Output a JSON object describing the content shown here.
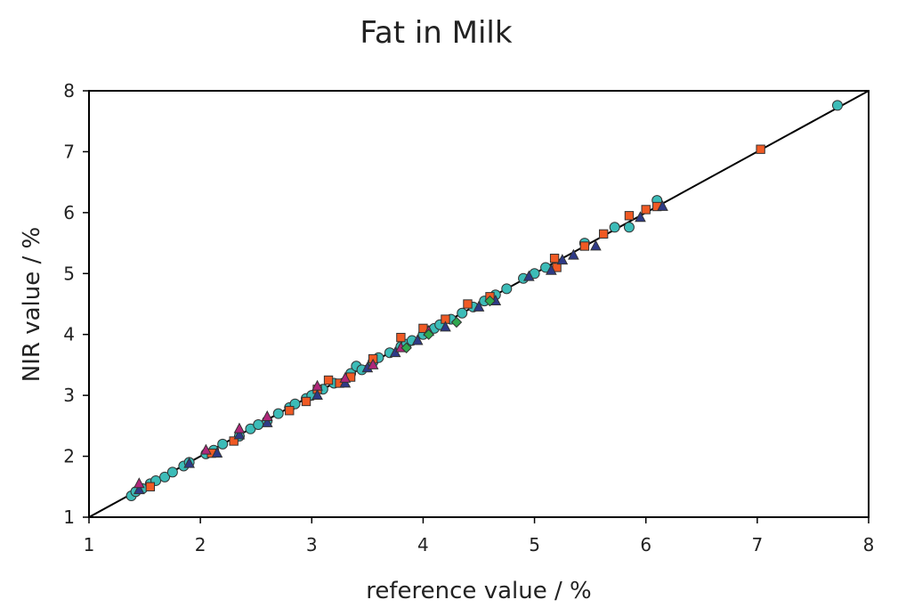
{
  "chart_data": {
    "type": "scatter",
    "title": "Fat in Milk",
    "xlabel": "reference   value  / %",
    "ylabel": "NIR  value  / %",
    "xlim": [
      1,
      8
    ],
    "ylim": [
      1,
      8
    ],
    "x_ticks": [
      "1",
      "2",
      "3",
      "4",
      "5",
      "6",
      "7",
      "8"
    ],
    "y_ticks": [
      "1",
      "2",
      "3",
      "4",
      "5",
      "6",
      "7",
      "8"
    ],
    "grid": false,
    "legend": "none",
    "reference_line": {
      "x": [
        1,
        8
      ],
      "y": [
        1,
        8
      ]
    },
    "series": [
      {
        "marker": "circle",
        "color": "#3cbcb8",
        "points": [
          [
            1.38,
            1.35
          ],
          [
            1.42,
            1.42
          ],
          [
            1.48,
            1.47
          ],
          [
            1.55,
            1.55
          ],
          [
            1.6,
            1.6
          ],
          [
            1.68,
            1.66
          ],
          [
            1.75,
            1.74
          ],
          [
            1.85,
            1.84
          ],
          [
            1.9,
            1.9
          ],
          [
            2.05,
            2.04
          ],
          [
            2.12,
            2.1
          ],
          [
            2.2,
            2.2
          ],
          [
            2.35,
            2.33
          ],
          [
            2.45,
            2.45
          ],
          [
            2.52,
            2.52
          ],
          [
            2.6,
            2.58
          ],
          [
            2.7,
            2.7
          ],
          [
            2.8,
            2.8
          ],
          [
            2.85,
            2.86
          ],
          [
            2.95,
            2.95
          ],
          [
            3.0,
            3.0
          ],
          [
            3.1,
            3.1
          ],
          [
            3.2,
            3.2
          ],
          [
            3.35,
            3.36
          ],
          [
            3.4,
            3.48
          ],
          [
            3.45,
            3.42
          ],
          [
            3.55,
            3.55
          ],
          [
            3.6,
            3.62
          ],
          [
            3.7,
            3.7
          ],
          [
            3.8,
            3.8
          ],
          [
            3.85,
            3.84
          ],
          [
            3.9,
            3.9
          ],
          [
            4.0,
            4.0
          ],
          [
            4.05,
            4.06
          ],
          [
            4.1,
            4.1
          ],
          [
            4.15,
            4.16
          ],
          [
            4.25,
            4.25
          ],
          [
            4.35,
            4.35
          ],
          [
            4.45,
            4.45
          ],
          [
            4.55,
            4.55
          ],
          [
            4.65,
            4.65
          ],
          [
            4.75,
            4.75
          ],
          [
            4.9,
            4.92
          ],
          [
            5.0,
            5.0
          ],
          [
            5.1,
            5.1
          ],
          [
            5.45,
            5.5
          ],
          [
            5.72,
            5.76
          ],
          [
            5.85,
            5.76
          ],
          [
            6.1,
            6.2
          ],
          [
            7.72,
            7.76
          ]
        ]
      },
      {
        "marker": "square",
        "color": "#f05a24",
        "points": [
          [
            1.55,
            1.5
          ],
          [
            2.1,
            2.05
          ],
          [
            2.3,
            2.25
          ],
          [
            2.8,
            2.75
          ],
          [
            2.95,
            2.9
          ],
          [
            3.05,
            3.1
          ],
          [
            3.15,
            3.25
          ],
          [
            3.25,
            3.2
          ],
          [
            3.35,
            3.3
          ],
          [
            3.55,
            3.6
          ],
          [
            3.8,
            3.95
          ],
          [
            4.0,
            4.1
          ],
          [
            4.2,
            4.25
          ],
          [
            4.4,
            4.5
          ],
          [
            4.6,
            4.62
          ],
          [
            5.18,
            5.25
          ],
          [
            5.2,
            5.1
          ],
          [
            5.45,
            5.45
          ],
          [
            5.62,
            5.65
          ],
          [
            5.85,
            5.95
          ],
          [
            6.0,
            6.05
          ],
          [
            6.1,
            6.1
          ],
          [
            7.03,
            7.04
          ]
        ]
      },
      {
        "marker": "triangle",
        "color": "#2e3a87",
        "points": [
          [
            1.45,
            1.45
          ],
          [
            1.9,
            1.88
          ],
          [
            2.15,
            2.05
          ],
          [
            2.35,
            2.35
          ],
          [
            2.6,
            2.55
          ],
          [
            3.05,
            3.0
          ],
          [
            3.3,
            3.2
          ],
          [
            3.5,
            3.45
          ],
          [
            3.75,
            3.7
          ],
          [
            3.95,
            3.9
          ],
          [
            4.2,
            4.12
          ],
          [
            4.5,
            4.45
          ],
          [
            4.65,
            4.55
          ],
          [
            4.95,
            4.95
          ],
          [
            5.15,
            5.05
          ],
          [
            5.25,
            5.22
          ],
          [
            5.35,
            5.3
          ],
          [
            5.55,
            5.45
          ],
          [
            5.95,
            5.92
          ],
          [
            6.15,
            6.1
          ]
        ]
      },
      {
        "marker": "triangle",
        "color": "#b0277a",
        "points": [
          [
            1.45,
            1.55
          ],
          [
            2.05,
            2.1
          ],
          [
            2.35,
            2.45
          ],
          [
            2.6,
            2.65
          ],
          [
            3.05,
            3.15
          ],
          [
            3.3,
            3.28
          ],
          [
            3.55,
            3.5
          ],
          [
            3.8,
            3.78
          ],
          [
            4.05,
            4.05
          ]
        ]
      },
      {
        "marker": "diamond",
        "color": "#2fa84f",
        "points": [
          [
            3.85,
            3.78
          ],
          [
            4.05,
            4.0
          ],
          [
            4.3,
            4.2
          ],
          [
            4.6,
            4.55
          ]
        ]
      }
    ]
  }
}
